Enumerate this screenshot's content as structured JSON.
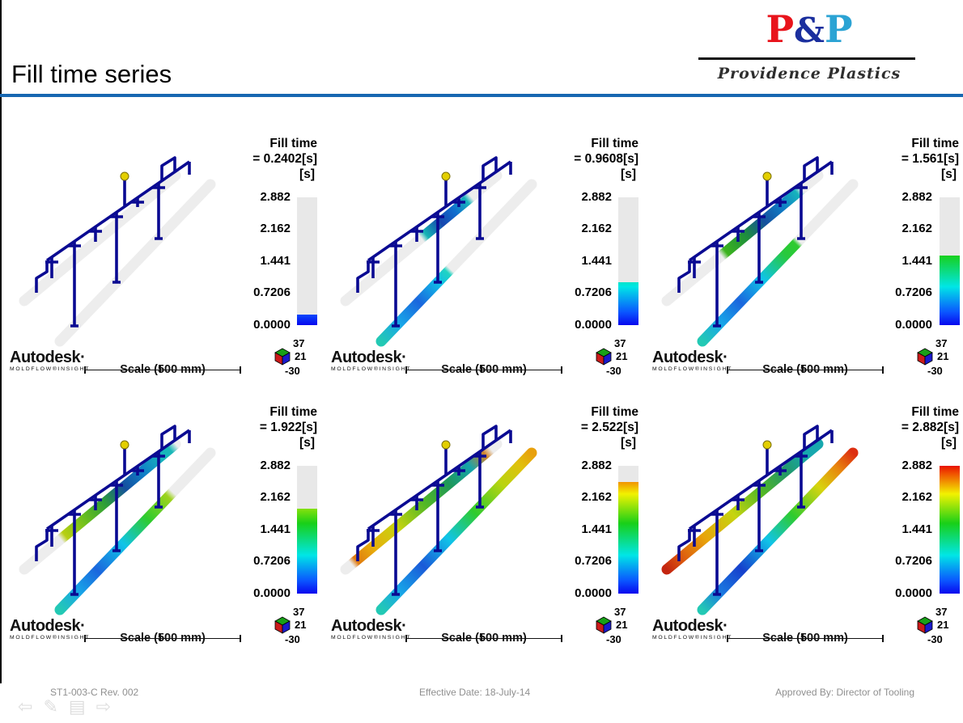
{
  "header": {
    "title": "Fill time series"
  },
  "logo": {
    "letter1": "P",
    "ampersand": "&",
    "letter2": "P",
    "subtitle": "Providence Plastics"
  },
  "legend": {
    "title": "Fill time",
    "unit": "[s]",
    "ticks": [
      "2.882",
      "2.162",
      "1.441",
      "0.7206",
      "0.0000"
    ],
    "max_value": 2.882
  },
  "branding": {
    "autodesk": "Autodesk·",
    "product": "MOLDFLOW®INSIGHT",
    "scale_label": "Scale (500 mm)"
  },
  "axis_triad": {
    "a": "37",
    "b": "21",
    "c": "-30"
  },
  "panels": [
    {
      "value_label": "= 0.2402[s]",
      "fill_value": 0.2402,
      "front_rail": [
        [
          0,
          "#ededed"
        ],
        [
          1,
          "#ededed"
        ]
      ],
      "back_rail": [
        [
          0,
          "#ededed"
        ],
        [
          1,
          "#ededed"
        ]
      ]
    },
    {
      "value_label": "= 0.9608[s]",
      "fill_value": 0.9608,
      "front_rail": [
        [
          0,
          "#23c9b4"
        ],
        [
          0.12,
          "#18a6e8"
        ],
        [
          0.25,
          "#1a66dd"
        ],
        [
          0.38,
          "#10c0e8"
        ],
        [
          0.44,
          "#21d4c2"
        ],
        [
          0.46,
          "#ededed"
        ],
        [
          1,
          "#ededed"
        ]
      ],
      "back_rail": [
        [
          0,
          "#ededed"
        ],
        [
          0.5,
          "#ededed"
        ],
        [
          0.53,
          "#14b4b4"
        ],
        [
          0.63,
          "#1646ae"
        ],
        [
          0.72,
          "#0f6ecf"
        ],
        [
          0.8,
          "#17b4bc"
        ],
        [
          0.83,
          "#ededed"
        ],
        [
          1,
          "#ededed"
        ]
      ]
    },
    {
      "value_label": "= 1.561[s]",
      "fill_value": 1.561,
      "front_rail": [
        [
          0,
          "#23c9b4"
        ],
        [
          0.12,
          "#18a6e8"
        ],
        [
          0.25,
          "#1a66dd"
        ],
        [
          0.4,
          "#10c4e8"
        ],
        [
          0.55,
          "#27c93e"
        ],
        [
          0.62,
          "#2ecb2e"
        ],
        [
          0.64,
          "#ededed"
        ],
        [
          1,
          "#ededed"
        ]
      ],
      "back_rail": [
        [
          0,
          "#ededed"
        ],
        [
          0.36,
          "#ededed"
        ],
        [
          0.39,
          "#3cb41e"
        ],
        [
          0.52,
          "#1e8f3c"
        ],
        [
          0.64,
          "#14509e"
        ],
        [
          0.76,
          "#0f7ec7"
        ],
        [
          0.86,
          "#17b4bc"
        ],
        [
          0.89,
          "#ededed"
        ],
        [
          1,
          "#ededed"
        ]
      ]
    },
    {
      "value_label": "= 1.922[s]",
      "fill_value": 1.922,
      "front_rail": [
        [
          0,
          "#23c9b4"
        ],
        [
          0.12,
          "#18a6e8"
        ],
        [
          0.25,
          "#1a66dd"
        ],
        [
          0.42,
          "#10c4e8"
        ],
        [
          0.58,
          "#2ecb2e"
        ],
        [
          0.72,
          "#9ed31c"
        ],
        [
          0.75,
          "#ededed"
        ],
        [
          1,
          "#ededed"
        ]
      ],
      "back_rail": [
        [
          0,
          "#ededed"
        ],
        [
          0.24,
          "#ededed"
        ],
        [
          0.27,
          "#b8cf12"
        ],
        [
          0.4,
          "#6abf1e"
        ],
        [
          0.53,
          "#2d9e38"
        ],
        [
          0.66,
          "#14509e"
        ],
        [
          0.78,
          "#0f7ec7"
        ],
        [
          0.9,
          "#17b4bc"
        ],
        [
          0.96,
          "#1ab8b8"
        ],
        [
          1,
          "#ededed"
        ]
      ]
    },
    {
      "value_label": "= 2.522[s]",
      "fill_value": 2.522,
      "front_rail": [
        [
          0,
          "#23c9b4"
        ],
        [
          0.12,
          "#18a6e8"
        ],
        [
          0.28,
          "#1a5ad8"
        ],
        [
          0.45,
          "#10c4e8"
        ],
        [
          0.62,
          "#2ecb2e"
        ],
        [
          0.8,
          "#b8d410"
        ],
        [
          0.92,
          "#e0c10c"
        ],
        [
          1,
          "#e8a00c"
        ]
      ],
      "back_rail": [
        [
          0,
          "#ededed"
        ],
        [
          0.04,
          "#ededed"
        ],
        [
          0.07,
          "#df7a10"
        ],
        [
          0.18,
          "#e8ae0b"
        ],
        [
          0.34,
          "#c6d410"
        ],
        [
          0.52,
          "#54b824"
        ],
        [
          0.68,
          "#1e9858"
        ],
        [
          0.82,
          "#16a4ac"
        ],
        [
          0.92,
          "#d2842a"
        ],
        [
          0.96,
          "#ededed"
        ],
        [
          1,
          "#ededed"
        ]
      ]
    },
    {
      "value_label": "= 2.882[s]",
      "fill_value": 2.882,
      "front_rail": [
        [
          0,
          "#23c9b4"
        ],
        [
          0.12,
          "#1a78e0"
        ],
        [
          0.26,
          "#1640cc"
        ],
        [
          0.44,
          "#10c4e8"
        ],
        [
          0.6,
          "#2ecb2e"
        ],
        [
          0.78,
          "#d8d40e"
        ],
        [
          0.9,
          "#e8860d"
        ],
        [
          1,
          "#dd2e10"
        ]
      ],
      "back_rail": [
        [
          0,
          "#c42610"
        ],
        [
          0.1,
          "#dd5c0e"
        ],
        [
          0.25,
          "#e8a40b"
        ],
        [
          0.44,
          "#c6d410"
        ],
        [
          0.62,
          "#54b824"
        ],
        [
          0.78,
          "#229868"
        ],
        [
          0.92,
          "#17a8ae"
        ],
        [
          1,
          "#17a8ae"
        ]
      ]
    }
  ],
  "footer": {
    "doc_number": "ST1-003-C  Rev. 002",
    "effective_date": "Effective Date: 18-July-14",
    "approved_by": "Approved By: Director of Tooling"
  },
  "chart_data": {
    "type": "heatmap",
    "title": "Fill time series",
    "series_label": "Fill time",
    "unit": "s",
    "frame_values": [
      0.2402,
      0.9608,
      1.561,
      1.922,
      2.522,
      2.882
    ],
    "colorbar_ticks": [
      2.882,
      2.162,
      1.441,
      0.7206,
      0.0
    ],
    "range": [
      0,
      2.882
    ],
    "colormap": "jet (blue→cyan→green→yellow→red)",
    "scale_bar": "500 mm",
    "view_rotation": [
      37,
      21,
      -30
    ]
  }
}
